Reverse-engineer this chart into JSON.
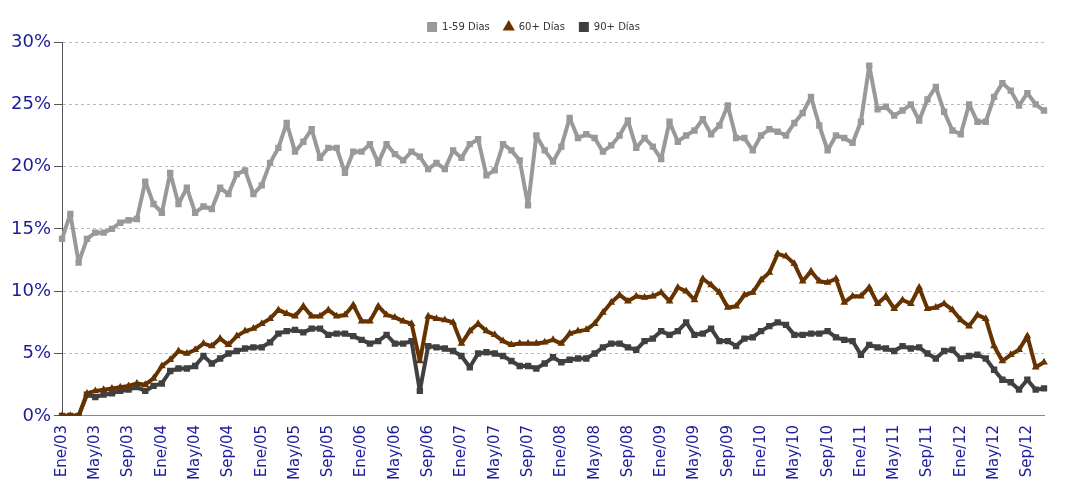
{
  "chart_data": {
    "type": "line",
    "categories": [
      "Ene/03",
      null,
      null,
      null,
      "May/03",
      null,
      null,
      null,
      "Sep/03",
      null,
      null,
      null,
      "Ene/04",
      null,
      null,
      null,
      "May/04",
      null,
      null,
      null,
      "Sep/04",
      null,
      null,
      null,
      "Ene/05",
      null,
      null,
      null,
      "May/05",
      null,
      null,
      null,
      "Sep/05",
      null,
      null,
      null,
      "Ene/06",
      null,
      null,
      null,
      "May/06",
      null,
      null,
      null,
      "Sep/06",
      null,
      null,
      null,
      "Ene/07",
      null,
      null,
      null,
      "May/07",
      null,
      null,
      null,
      "Sep/07",
      null,
      null,
      null,
      "Ene/08",
      null,
      null,
      null,
      "May/08",
      null,
      null,
      null,
      "Sep/08",
      null,
      null,
      null,
      "Ene/09",
      null,
      null,
      null,
      "May/09",
      null,
      null,
      null,
      "Sep/09",
      null,
      null,
      null,
      "Ene/10",
      null,
      null,
      null,
      "May/10",
      null,
      null,
      null,
      "Sep/10",
      null,
      null,
      null,
      "Ene/11",
      null,
      null,
      null,
      "May/11",
      null,
      null,
      null,
      "Sep/11",
      null,
      null,
      null,
      "Ene/12",
      null,
      null,
      null,
      "May/12",
      null,
      null,
      null,
      "Sep/12",
      null,
      null
    ],
    "series": [
      {
        "name": "1-59 Dias",
        "color": "#999999",
        "marker": "square",
        "values": [
          14.2,
          16.2,
          12.3,
          14.2,
          14.7,
          14.7,
          15.0,
          15.5,
          15.7,
          15.8,
          18.8,
          17.0,
          16.3,
          19.5,
          17.0,
          18.3,
          16.3,
          16.8,
          16.6,
          18.3,
          17.8,
          19.4,
          19.7,
          17.8,
          18.5,
          20.3,
          21.5,
          23.5,
          21.2,
          22.0,
          23.0,
          20.7,
          21.5,
          21.5,
          19.5,
          21.2,
          21.2,
          21.8,
          20.3,
          21.8,
          21.0,
          20.5,
          21.2,
          20.8,
          19.8,
          20.3,
          19.8,
          21.3,
          20.7,
          21.8,
          22.2,
          19.3,
          19.7,
          21.8,
          21.3,
          20.5,
          16.9,
          22.5,
          21.3,
          20.4,
          21.6,
          23.9,
          22.3,
          22.6,
          22.3,
          21.2,
          21.7,
          22.5,
          23.7,
          21.5,
          22.3,
          21.6,
          20.6,
          23.6,
          22.0,
          22.5,
          22.9,
          23.8,
          22.6,
          23.3,
          24.9,
          22.3,
          22.3,
          21.3,
          22.5,
          23.0,
          22.8,
          22.5,
          23.5,
          24.3,
          25.6,
          23.3,
          21.3,
          22.5,
          22.3,
          21.9,
          23.6,
          28.1,
          24.6,
          24.8,
          24.1,
          24.5,
          25.0,
          23.7,
          25.4,
          26.4,
          24.4,
          22.9,
          22.6,
          25.0,
          23.6,
          23.6,
          25.6,
          26.7,
          26.1,
          24.9,
          25.9,
          25.0,
          24.5
        ]
      },
      {
        "name": "60+ Días",
        "color": "#663300",
        "marker": "triangle",
        "values": [
          0,
          0,
          0,
          1.8,
          2.0,
          2.1,
          2.2,
          2.3,
          2.4,
          2.6,
          2.5,
          3.0,
          4.0,
          4.5,
          5.2,
          5.0,
          5.3,
          5.8,
          5.6,
          6.2,
          5.7,
          6.4,
          6.8,
          7.0,
          7.4,
          7.8,
          8.5,
          8.2,
          8.0,
          8.8,
          8.0,
          8.0,
          8.5,
          8.0,
          8.1,
          8.9,
          7.6,
          7.6,
          8.8,
          8.1,
          7.9,
          7.6,
          7.4,
          4.4,
          8.0,
          7.8,
          7.7,
          7.5,
          5.8,
          6.8,
          7.4,
          6.8,
          6.5,
          6.0,
          5.7,
          5.8,
          5.8,
          5.8,
          5.9,
          6.1,
          5.8,
          6.6,
          6.8,
          6.9,
          7.4,
          8.3,
          9.1,
          9.7,
          9.2,
          9.6,
          9.5,
          9.6,
          9.9,
          9.2,
          10.3,
          10.0,
          9.3,
          11.0,
          10.5,
          9.9,
          8.7,
          8.8,
          9.7,
          9.9,
          10.9,
          11.5,
          13.0,
          12.8,
          12.2,
          10.8,
          11.6,
          10.8,
          10.7,
          11.0,
          9.1,
          9.6,
          9.6,
          10.3,
          9.0,
          9.6,
          8.6,
          9.3,
          9.0,
          10.3,
          8.6,
          8.7,
          9.0,
          8.5,
          7.7,
          7.2,
          8.1,
          7.8,
          5.6,
          4.4,
          4.9,
          5.3,
          6.4,
          3.9,
          4.3
        ]
      },
      {
        "name": "90+ Días",
        "color": "#404040",
        "marker": "square",
        "values": [
          0,
          0,
          0,
          1.7,
          1.5,
          1.7,
          1.8,
          2.0,
          2.1,
          2.3,
          2.0,
          2.4,
          2.6,
          3.6,
          3.8,
          3.8,
          4.0,
          4.8,
          4.2,
          4.6,
          5.0,
          5.2,
          5.4,
          5.5,
          5.5,
          5.9,
          6.6,
          6.8,
          6.9,
          6.7,
          7.0,
          7.0,
          6.5,
          6.6,
          6.6,
          6.4,
          6.1,
          5.8,
          6.0,
          6.5,
          5.8,
          5.8,
          6.0,
          2.0,
          5.6,
          5.5,
          5.4,
          5.2,
          4.8,
          3.9,
          5.0,
          5.1,
          5.0,
          4.8,
          4.4,
          4.0,
          4.0,
          3.8,
          4.2,
          4.7,
          4.3,
          4.5,
          4.6,
          4.6,
          5.0,
          5.5,
          5.8,
          5.8,
          5.5,
          5.3,
          6.0,
          6.2,
          6.8,
          6.5,
          6.8,
          7.5,
          6.5,
          6.6,
          7.0,
          6.0,
          6.0,
          5.6,
          6.2,
          6.3,
          6.8,
          7.2,
          7.5,
          7.3,
          6.5,
          6.5,
          6.6,
          6.6,
          6.8,
          6.3,
          6.1,
          6.0,
          4.9,
          5.7,
          5.5,
          5.4,
          5.2,
          5.6,
          5.4,
          5.5,
          5.0,
          4.6,
          5.2,
          5.3,
          4.6,
          4.8,
          4.9,
          4.6,
          3.7,
          2.9,
          2.7,
          2.1,
          2.9,
          2.1,
          2.2
        ]
      }
    ],
    "ylim": [
      0,
      30
    ],
    "yticks": [
      {
        "value": 0,
        "label": "0%"
      },
      {
        "value": 5,
        "label": "5%"
      },
      {
        "value": 10,
        "label": "10%"
      },
      {
        "value": 15,
        "label": "15%"
      },
      {
        "value": 20,
        "label": "20%"
      },
      {
        "value": 25,
        "label": "25%"
      },
      {
        "value": 30,
        "label": "30%"
      }
    ],
    "grid": "y",
    "legend": "top",
    "line_style": "solid"
  }
}
